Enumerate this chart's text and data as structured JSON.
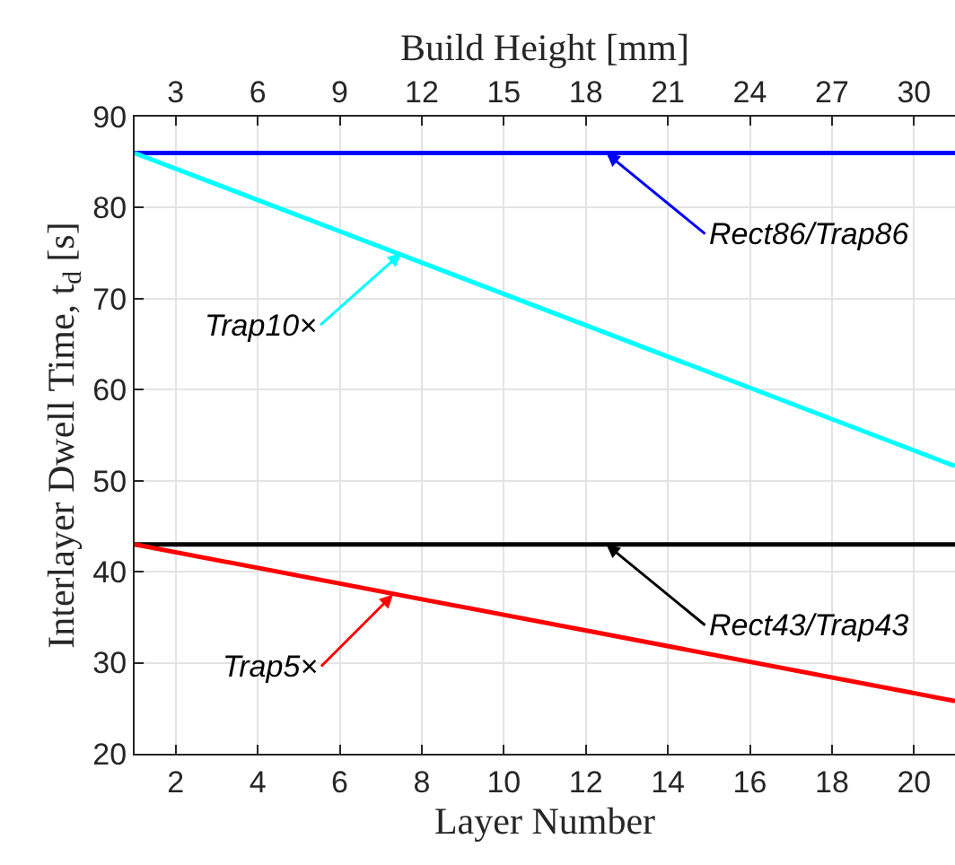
{
  "chart_data": {
    "type": "line",
    "xlabel": "Layer Number",
    "ylabel": "Interlayer Dwell Time, t$_{d}$ [s]",
    "x2label": "Build Height [mm]",
    "x": [
      1,
      21
    ],
    "series": [
      {
        "color": "#0000ff",
        "values": [
          86,
          86
        ]
      },
      {
        "color": "#00ffff",
        "values": [
          86,
          51.6
        ]
      },
      {
        "color": "#000000",
        "values": [
          43,
          43
        ]
      },
      {
        "color": "#ff0000",
        "values": [
          43,
          25.8
        ]
      }
    ],
    "xlim": [
      1,
      21
    ],
    "xticks": [
      2,
      4,
      6,
      8,
      10,
      12,
      14,
      16,
      18,
      20
    ],
    "x2lim": [
      1.5,
      31.5
    ],
    "x2ticks": [
      3,
      6,
      9,
      12,
      15,
      18,
      21,
      24,
      27,
      30
    ],
    "ylim": [
      20,
      90
    ],
    "yticks": [
      20,
      30,
      40,
      50,
      60,
      70,
      80,
      90
    ],
    "grid": true,
    "marker": "none",
    "line_style": "solid",
    "annotations": [
      {
        "text": "Rect86/Trap86",
        "x": 12.5,
        "y": 86
      },
      {
        "text": "Trap10×",
        "x": 7.5,
        "y": 75
      },
      {
        "text": "Rect43/Trap43",
        "x": 12.5,
        "y": 43
      },
      {
        "text": "Trap5×",
        "x": 7.3,
        "y": 37.5
      }
    ]
  }
}
